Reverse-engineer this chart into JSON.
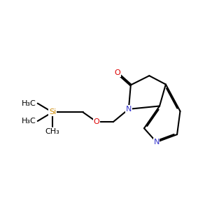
{
  "background": "#ffffff",
  "bond_color": "#000000",
  "lw": 1.5,
  "dbl_off": 0.032,
  "fs": 8.0,
  "colors": {
    "O": "#dd0000",
    "N": "#3333cc",
    "Si": "#cc8800",
    "C": "#000000"
  },
  "fig_w": 3.03,
  "fig_h": 3.0,
  "dpi": 100,
  "xlim": [
    0,
    10
  ],
  "ylim": [
    0,
    10
  ]
}
